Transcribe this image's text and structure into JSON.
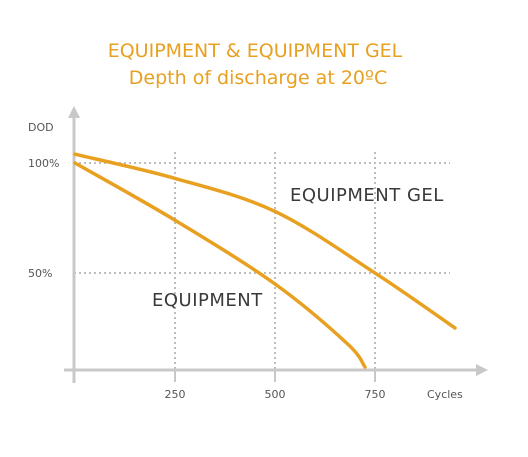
{
  "colors": {
    "accent": "#e8a020",
    "axis": "#c8c8c8",
    "grid": "#bdbdbd",
    "text": "#555555",
    "series_label": "#3a3a3a"
  },
  "chart_data": {
    "type": "line",
    "title": "EQUIPMENT & EQUIPMENT GEL",
    "subtitle": "Depth of discharge at 20ºC",
    "xlabel": "Cycles",
    "ylabel": "DOD",
    "xlim": [
      0,
      950
    ],
    "ylim": [
      0,
      100
    ],
    "x_ticks": [
      250,
      500,
      750
    ],
    "x_tick_labels": [
      "250",
      "500",
      "750"
    ],
    "y_ticks": [
      50,
      100
    ],
    "y_tick_labels": [
      "50%",
      "100%"
    ],
    "grid": true,
    "grid_style": "dotted",
    "series": [
      {
        "name": "EQUIPMENT GEL",
        "x": [
          0,
          250,
          500,
          750,
          950
        ],
        "y": [
          104,
          93,
          78,
          50,
          25
        ]
      },
      {
        "name": "EQUIPMENT",
        "x": [
          0,
          250,
          500,
          680,
          725
        ],
        "y": [
          100,
          74,
          45,
          18,
          0
        ]
      }
    ]
  }
}
